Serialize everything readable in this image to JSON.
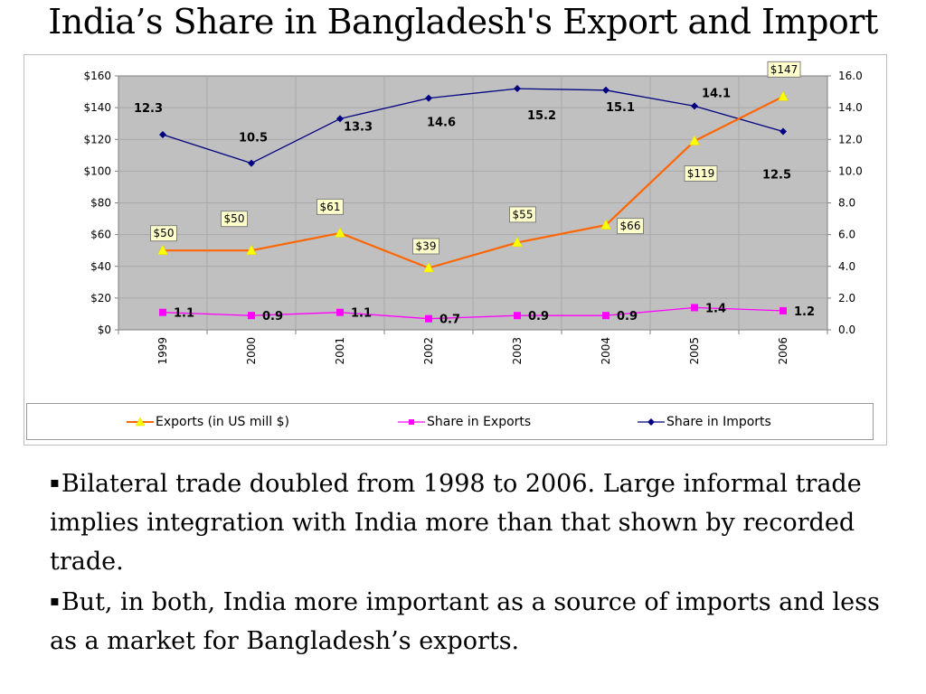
{
  "slide": {
    "title": "India’s Share in Bangladesh's Export and Import",
    "bullets": [
      "Bilateral trade doubled from 1998 to 2006. Large informal trade implies integration with India more than that shown by recorded trade.",
      "But, in both, India more important as a source of imports and less as a market for Bangladesh’s exports."
    ],
    "bullet_marker": "▪"
  },
  "chart_data": {
    "type": "line",
    "categories": [
      "1999",
      "2000",
      "2001",
      "2002",
      "2003",
      "2004",
      "2005",
      "2006"
    ],
    "y_left": {
      "range": [
        0,
        160
      ],
      "ticks": [
        "$0",
        "$20",
        "$40",
        "$60",
        "$80",
        "$100",
        "$120",
        "$140",
        "$160"
      ]
    },
    "y_right": {
      "range": [
        0,
        16
      ],
      "ticks": [
        "0.0",
        "2.0",
        "4.0",
        "6.0",
        "8.0",
        "10.0",
        "12.0",
        "14.0",
        "16.0"
      ]
    },
    "grid": true,
    "plot_background": "#c0c0c0",
    "legend_position": "bottom",
    "series": [
      {
        "name": "Exports (in US mill $)",
        "axis": "left",
        "values": [
          50,
          50,
          61,
          39,
          55,
          66,
          119,
          147
        ],
        "labels": [
          "$50",
          "$50",
          "$61",
          "$39",
          "$55",
          "$66",
          "$119",
          "$147"
        ],
        "color": "#ff6600",
        "marker": "triangle",
        "marker_color": "#ffff00"
      },
      {
        "name": "Share in Exports",
        "axis": "right",
        "values": [
          1.1,
          0.9,
          1.1,
          0.7,
          0.9,
          0.9,
          1.4,
          1.2
        ],
        "labels": [
          "1.1",
          "0.9",
          "1.1",
          "0.7",
          "0.9",
          "0.9",
          "1.4",
          "1.2"
        ],
        "color": "#ff00ff",
        "marker": "square",
        "marker_color": "#ff00ff"
      },
      {
        "name": "Share in Imports",
        "axis": "right",
        "values": [
          12.3,
          10.5,
          13.3,
          14.6,
          15.2,
          15.1,
          14.1,
          12.5
        ],
        "labels": [
          "12.3",
          "10.5",
          "13.3",
          "14.6",
          "15.2",
          "15.1",
          "14.1",
          "12.5"
        ],
        "color": "#000080",
        "marker": "diamond",
        "marker_color": "#000080"
      }
    ]
  }
}
